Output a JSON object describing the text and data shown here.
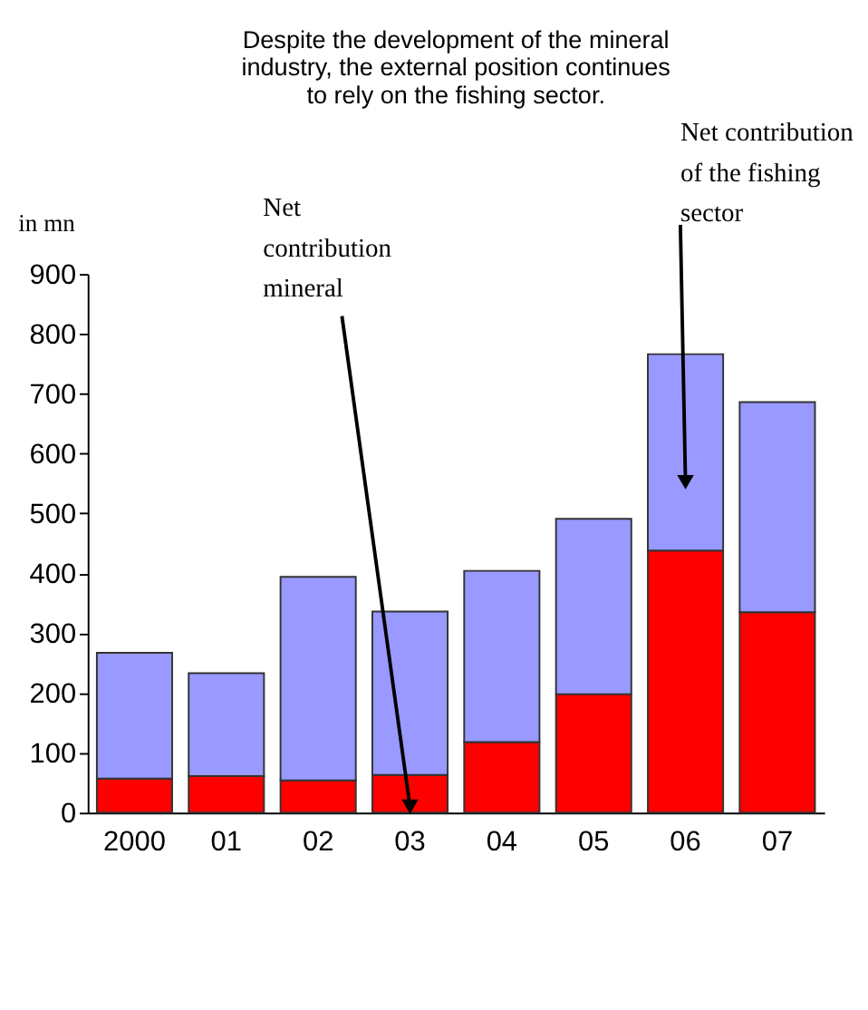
{
  "chart_data": {
    "type": "bar",
    "title": "Despite the development of the mineral industry, the external position continues to rely on the fishing sector.",
    "ylabel": "in mn",
    "categories": [
      "2000",
      "01",
      "02",
      "03",
      "04",
      "05",
      "06",
      "07"
    ],
    "stacked": true,
    "series": [
      {
        "color": "#ff0000",
        "values": [
          57,
          61,
          54,
          63,
          118,
          198,
          438,
          335
        ]
      },
      {
        "color": "#9999ff",
        "values": [
          210,
          172,
          340,
          273,
          286,
          293,
          328,
          351
        ]
      }
    ],
    "ylim": [
      0,
      900
    ],
    "yticks": [
      0,
      100,
      200,
      300,
      400,
      500,
      600,
      700,
      800,
      900
    ],
    "grid": false,
    "annotations": [
      {
        "text": "Net contribution mineral",
        "x": "03",
        "y": 10
      },
      {
        "text": "Net contribution of the fishing sector",
        "x": "06",
        "y": 552
      }
    ]
  }
}
